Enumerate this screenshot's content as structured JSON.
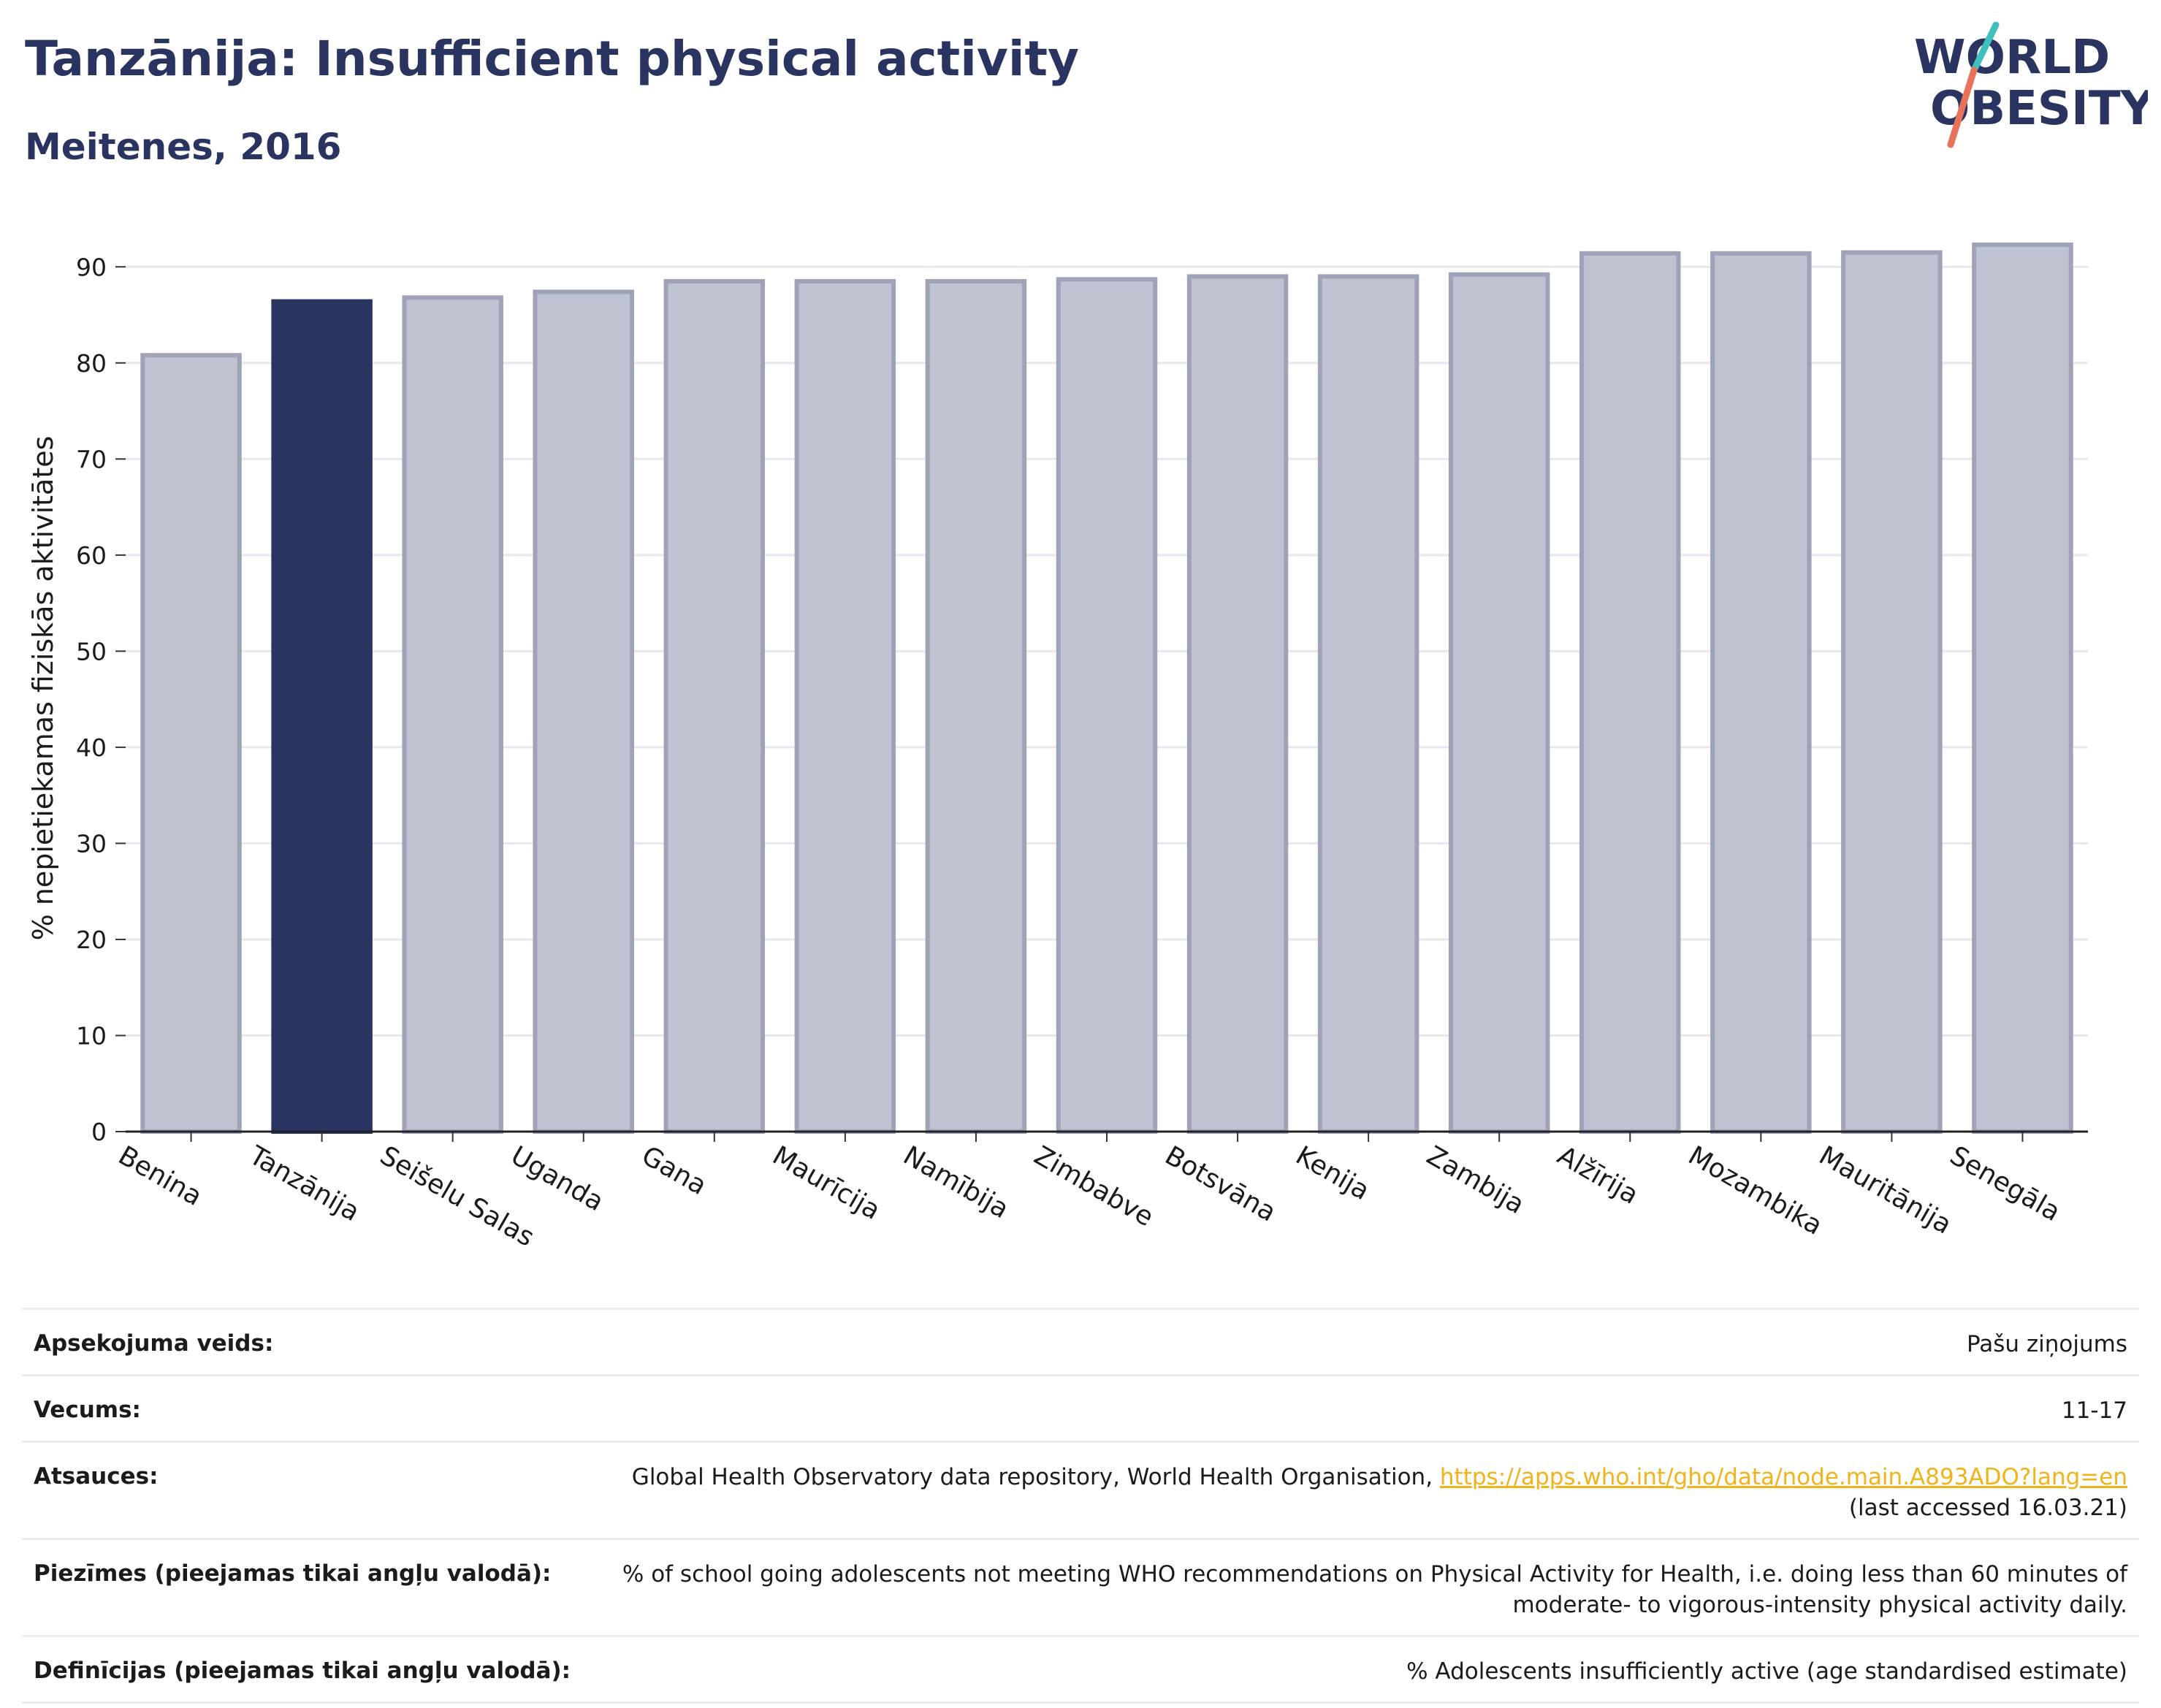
{
  "header": {
    "title": "Tanzānija: Insufficient physical activity",
    "subtitle": "Meitenes, 2016"
  },
  "logo": {
    "line1": "WORLD",
    "line2": "OBESITY",
    "accent_colors": [
      "#3fbfbf",
      "#e8735a"
    ],
    "text_color": "#2a3461"
  },
  "chart_data": {
    "type": "bar",
    "categories": [
      "Benina",
      "Tanzānija",
      "Seišelu Salas",
      "Uganda",
      "Gana",
      "Maurīcija",
      "Namībija",
      "Zimbabve",
      "Botsvāna",
      "Kenija",
      "Zambija",
      "Alžīrija",
      "Mozambika",
      "Mauritānija",
      "Senegāla"
    ],
    "values": [
      80.8,
      86.4,
      86.8,
      87.4,
      88.5,
      88.5,
      88.5,
      88.7,
      89.0,
      89.0,
      89.2,
      91.4,
      91.4,
      91.5,
      92.3
    ],
    "highlight": "Tanzānija",
    "ylabel": "% nepietiekamas fiziskās aktivitātes",
    "xlabel": "",
    "ylim": [
      0,
      92.3
    ],
    "yticks": [
      0,
      10,
      20,
      30,
      40,
      50,
      60,
      70,
      80,
      90
    ],
    "grid": true,
    "colors": {
      "bar": "#bfc2d0",
      "bar_border": "#9ea3b8",
      "highlight": "#2a3461",
      "grid": "#e6e8ef"
    }
  },
  "info": {
    "rows": [
      {
        "label": "Apsekojuma veids:",
        "value": "Pašu ziņojums"
      },
      {
        "label": "Vecums:",
        "value": "11-17"
      },
      {
        "label": "Atsauces:",
        "value": "Global Health Observatory data repository, World Health Organisation, ",
        "link": "https://apps.who.int/gho/data/node.main.A893ADO?lang=en",
        "value2": "(last accessed 16.03.21)"
      },
      {
        "label": "Piezīmes (pieejamas tikai angļu valodā):",
        "value": "% of school going adolescents not meeting WHO recommendations on Physical Activity for Health, i.e. doing less than 60 minutes of",
        "value2": "moderate- to vigorous-intensity physical activity daily."
      },
      {
        "label": "Definīcijas (pieejamas tikai angļu valodā):",
        "value": "% Adolescents insufficiently active (age standardised estimate)"
      }
    ]
  }
}
